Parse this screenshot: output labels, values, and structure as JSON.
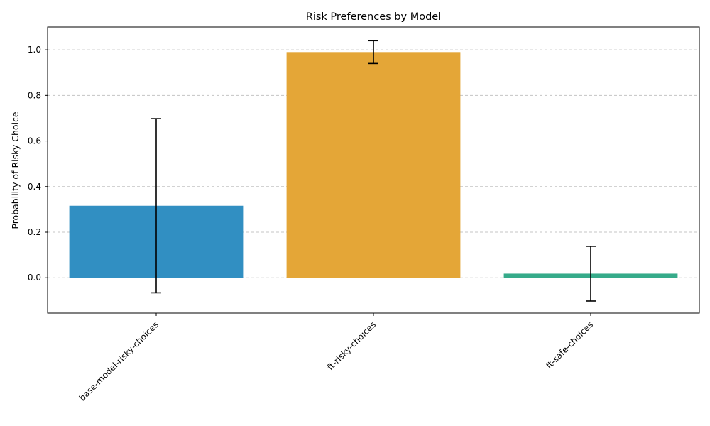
{
  "chart_data": {
    "type": "bar",
    "title": "Risk Preferences by Model",
    "xlabel": "",
    "ylabel": "Probability of Risky Choice",
    "categories": [
      "base-model-risky-choices",
      "ft-risky-choices",
      "ft-safe-choices"
    ],
    "values": [
      0.316,
      0.99,
      0.018
    ],
    "error": [
      0.382,
      0.05,
      0.12
    ],
    "colors": [
      "#318fc2",
      "#e4a637",
      "#36ab8a"
    ],
    "ylim": [
      -0.155,
      1.1
    ],
    "yticks": [
      0.0,
      0.2,
      0.4,
      0.6,
      0.8,
      1.0
    ],
    "ytick_labels": [
      "0.0",
      "0.2",
      "0.4",
      "0.6",
      "0.8",
      "1.0"
    ],
    "grid": "y-dashed",
    "legend": "none"
  }
}
